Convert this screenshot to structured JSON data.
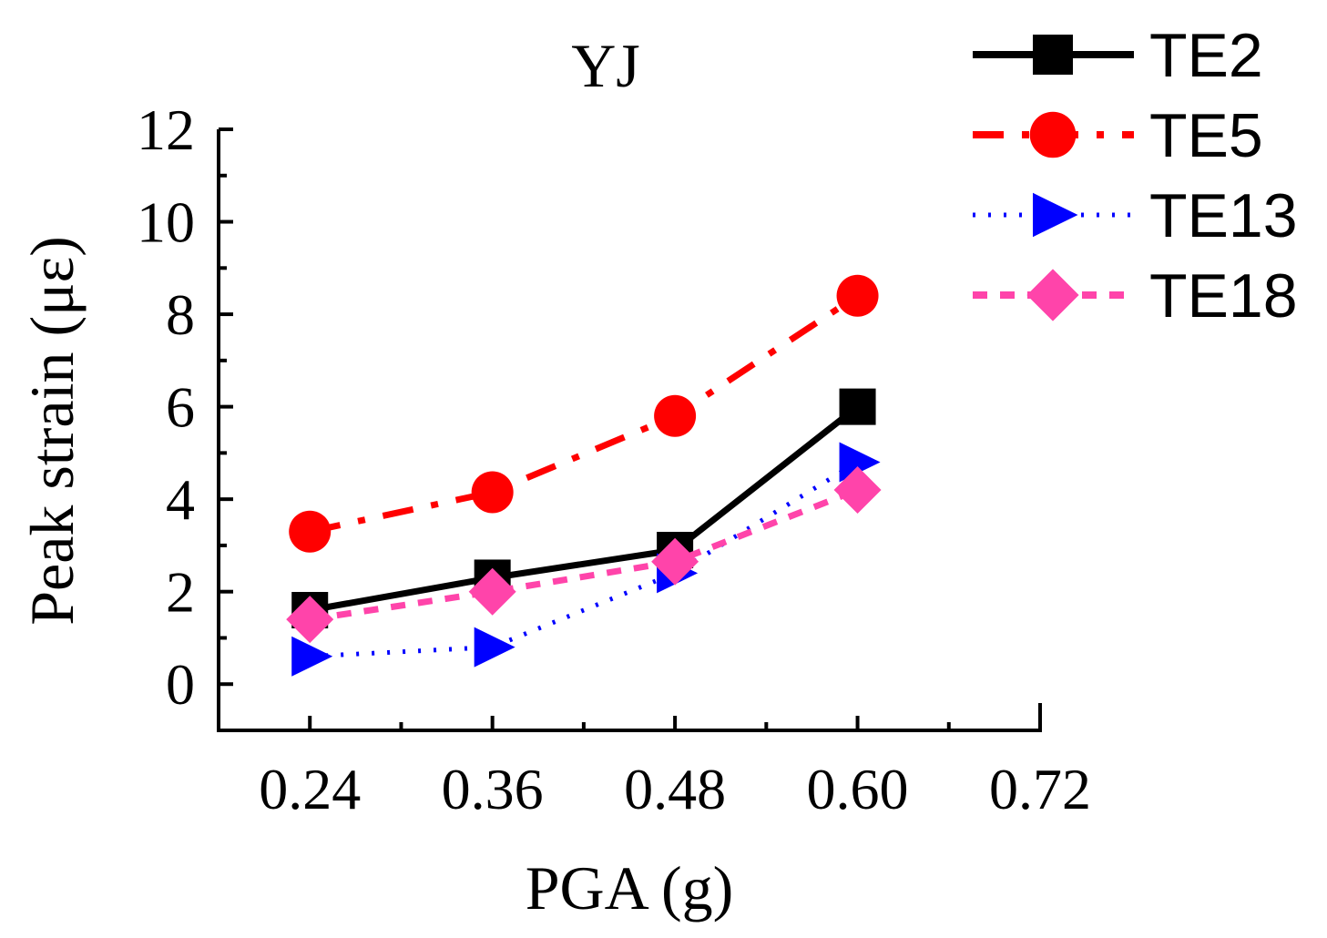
{
  "chart_data": {
    "type": "line",
    "title": "YJ",
    "xlabel": "PGA (g)",
    "ylabel": "Peak strain (με)",
    "x": [
      0.24,
      0.36,
      0.48,
      0.6
    ],
    "xlim": [
      0.18,
      0.72
    ],
    "ylim": [
      -1,
      12
    ],
    "xticks": [
      "0.24",
      "0.36",
      "0.48",
      "0.60",
      "0.72"
    ],
    "yticks": [
      "0",
      "2",
      "4",
      "6",
      "8",
      "10",
      "12"
    ],
    "legend_position": "top-right outside",
    "series": [
      {
        "name": "TE2",
        "values": [
          1.6,
          2.3,
          2.9,
          6.0
        ],
        "color": "#000000",
        "marker": "square",
        "line": "solid"
      },
      {
        "name": "TE5",
        "values": [
          3.3,
          4.15,
          5.8,
          8.4
        ],
        "color": "#ff0000",
        "marker": "circle",
        "line": "dash-dot"
      },
      {
        "name": "TE13",
        "values": [
          0.6,
          0.8,
          2.4,
          4.8
        ],
        "color": "#0000ff",
        "marker": "triangle-right",
        "line": "dotted"
      },
      {
        "name": "TE18",
        "values": [
          1.4,
          2.0,
          2.65,
          4.2
        ],
        "color": "#ff44aa",
        "marker": "diamond",
        "line": "short-dash"
      }
    ]
  }
}
